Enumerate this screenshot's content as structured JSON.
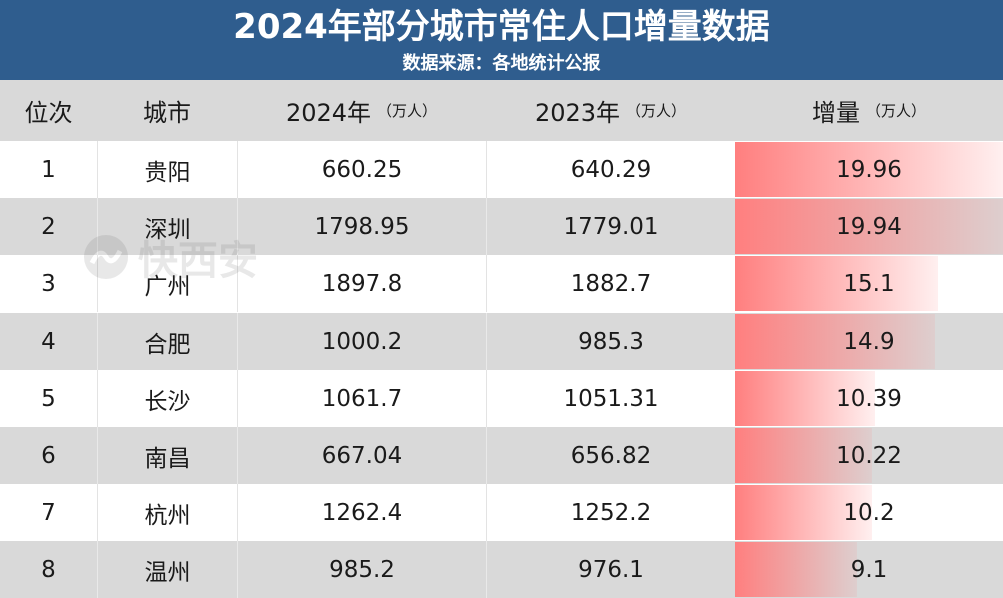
{
  "header": {
    "title": "2024年部分城市常住人口增量数据",
    "source": "数据来源：各地统计公报"
  },
  "columns": {
    "rank": "位次",
    "city": "城市",
    "y2024": "2024年",
    "y2023": "2023年",
    "increase": "增量",
    "unit": "（万人）"
  },
  "watermark": {
    "text": "快西安"
  },
  "colors": {
    "banner": "#2f5d8e",
    "header_row": "#d9d9d9",
    "bar": "#ff7f7f"
  },
  "bar_max": 19.96,
  "rows": [
    {
      "rank": "1",
      "city": "贵阳",
      "y2024": "660.25",
      "y2023": "640.29",
      "increase": "19.96",
      "value": 19.96
    },
    {
      "rank": "2",
      "city": "深圳",
      "y2024": "1798.95",
      "y2023": "1779.01",
      "increase": "19.94",
      "value": 19.94
    },
    {
      "rank": "3",
      "city": "广州",
      "y2024": "1897.8",
      "y2023": "1882.7",
      "increase": "15.1",
      "value": 15.1
    },
    {
      "rank": "4",
      "city": "合肥",
      "y2024": "1000.2",
      "y2023": "985.3",
      "increase": "14.9",
      "value": 14.9
    },
    {
      "rank": "5",
      "city": "长沙",
      "y2024": "1061.7",
      "y2023": "1051.31",
      "increase": "10.39",
      "value": 10.39
    },
    {
      "rank": "6",
      "city": "南昌",
      "y2024": "667.04",
      "y2023": "656.82",
      "increase": "10.22",
      "value": 10.22
    },
    {
      "rank": "7",
      "city": "杭州",
      "y2024": "1262.4",
      "y2023": "1252.2",
      "increase": "10.2",
      "value": 10.2
    },
    {
      "rank": "8",
      "city": "温州",
      "y2024": "985.2",
      "y2023": "976.1",
      "increase": "9.1",
      "value": 9.1
    }
  ]
}
